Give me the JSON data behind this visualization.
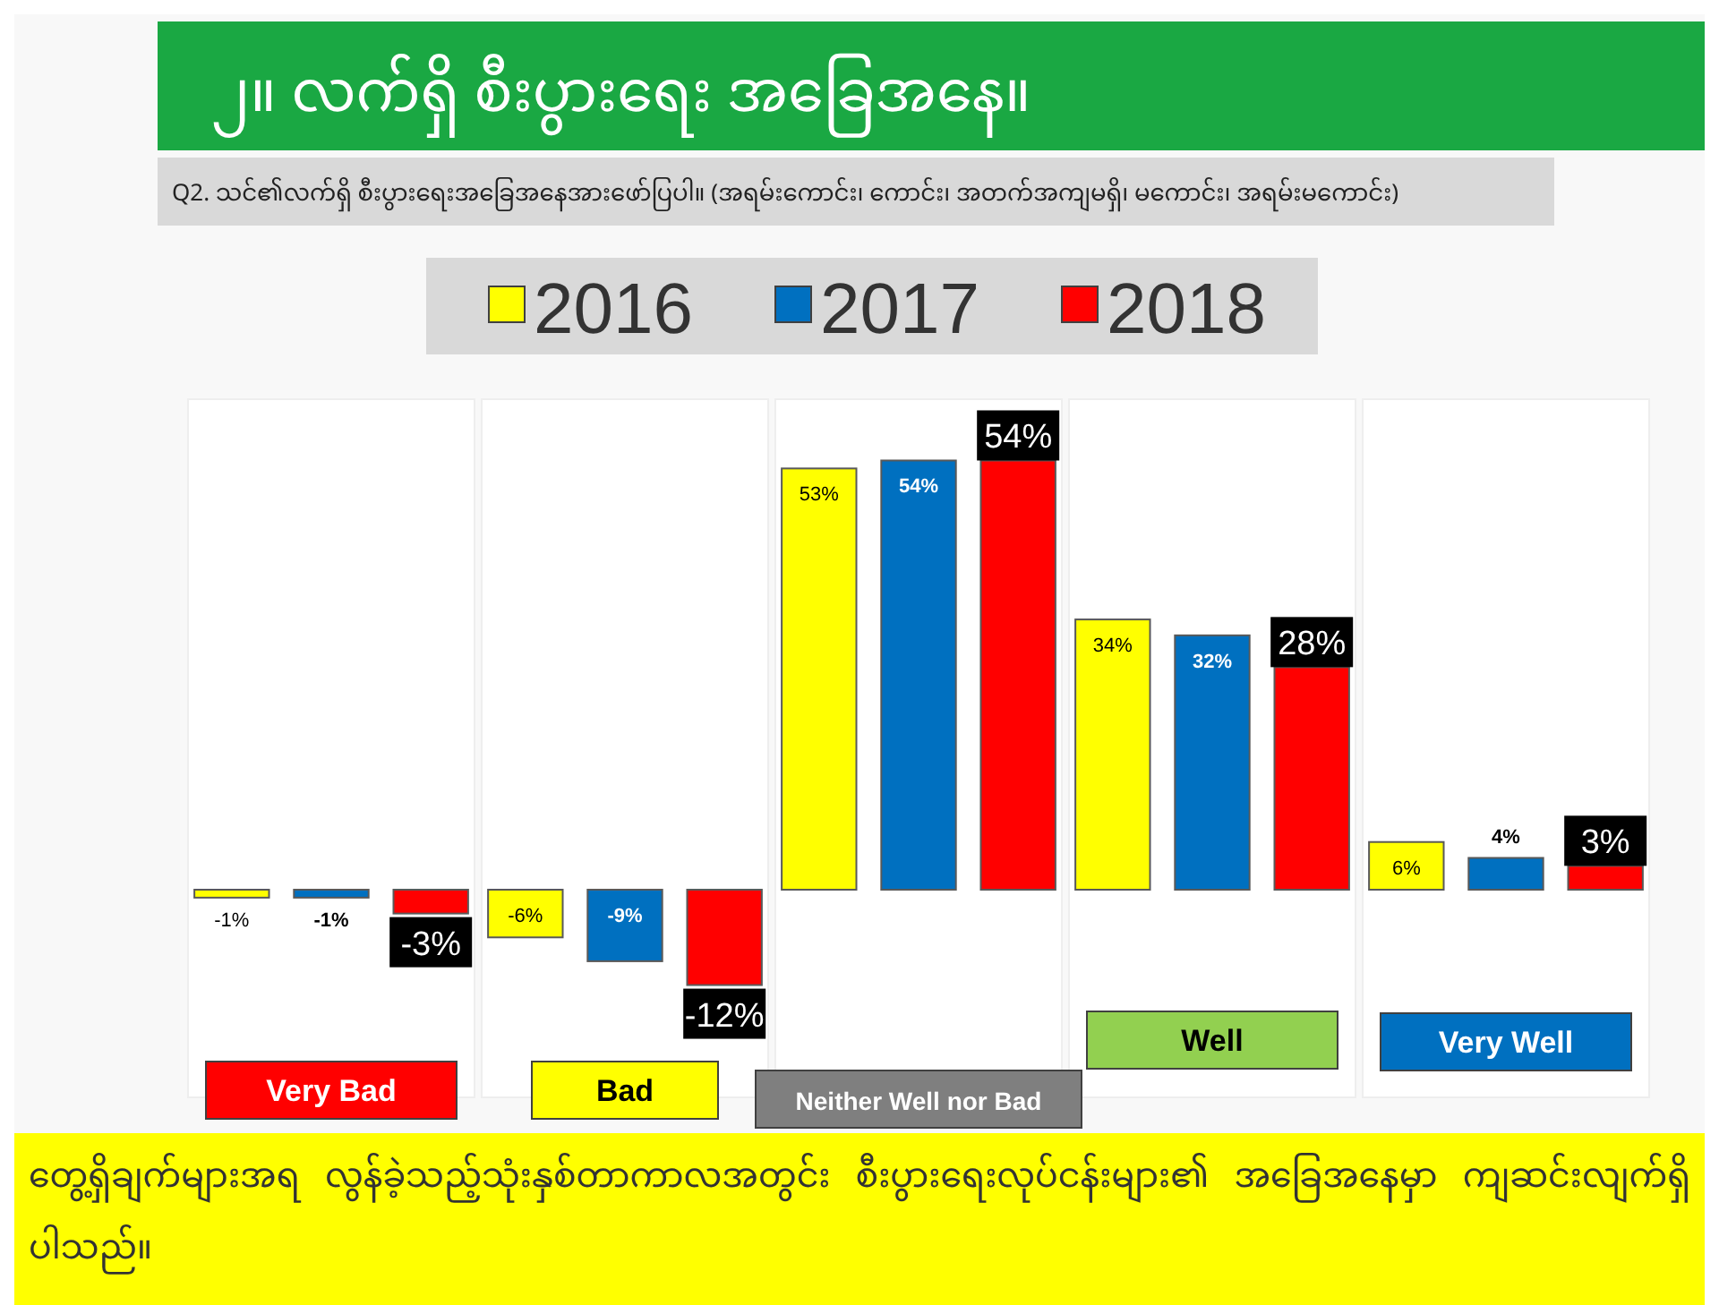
{
  "chart_data": {
    "type": "bar",
    "title": "၂။ လက်ရှိ စီးပွားရေး အခြေအနေ။",
    "subtitle": "Q2. သင်၏လက်ရှိ စီးပွားရေးအခြေအနေအားဖော်ပြပါ။ (အရမ်းကောင်း၊ ကောင်း၊ အတက်အကျမရှိ၊ မကောင်း၊ အရမ်းမကောင်း)",
    "categories": [
      "Very Bad",
      "Bad",
      "Neither Well nor Bad",
      "Well",
      "Very Well"
    ],
    "series": [
      {
        "name": "2016",
        "color": "#ffff00",
        "values": [
          -1,
          -6,
          53,
          34,
          6
        ],
        "value_labels": [
          "-1%",
          "-6%",
          "53%",
          "34%",
          "6%"
        ]
      },
      {
        "name": "2017",
        "color": "#0070c0",
        "values": [
          -1,
          -9,
          54,
          32,
          4
        ],
        "value_labels": [
          "-1%",
          "-9%",
          "54%",
          "32%",
          "4%"
        ]
      },
      {
        "name": "2018",
        "color": "#ff0000",
        "values": [
          -3,
          -12,
          54,
          28,
          3
        ],
        "value_labels": [
          "-3%",
          "-12%",
          "54%",
          "28%",
          "3%"
        ]
      }
    ],
    "legend": "top",
    "annotations": [
      "တွေ့ရှိချက်များအရ လွန်ခဲ့သည့်သုံးနှစ်တာကာလအတွင်း စီးပွားရေးလုပ်ငန်းများ၏ အခြေအနေမှာ ကျဆင်းလျက်ရှိပါသည်။"
    ]
  }
}
